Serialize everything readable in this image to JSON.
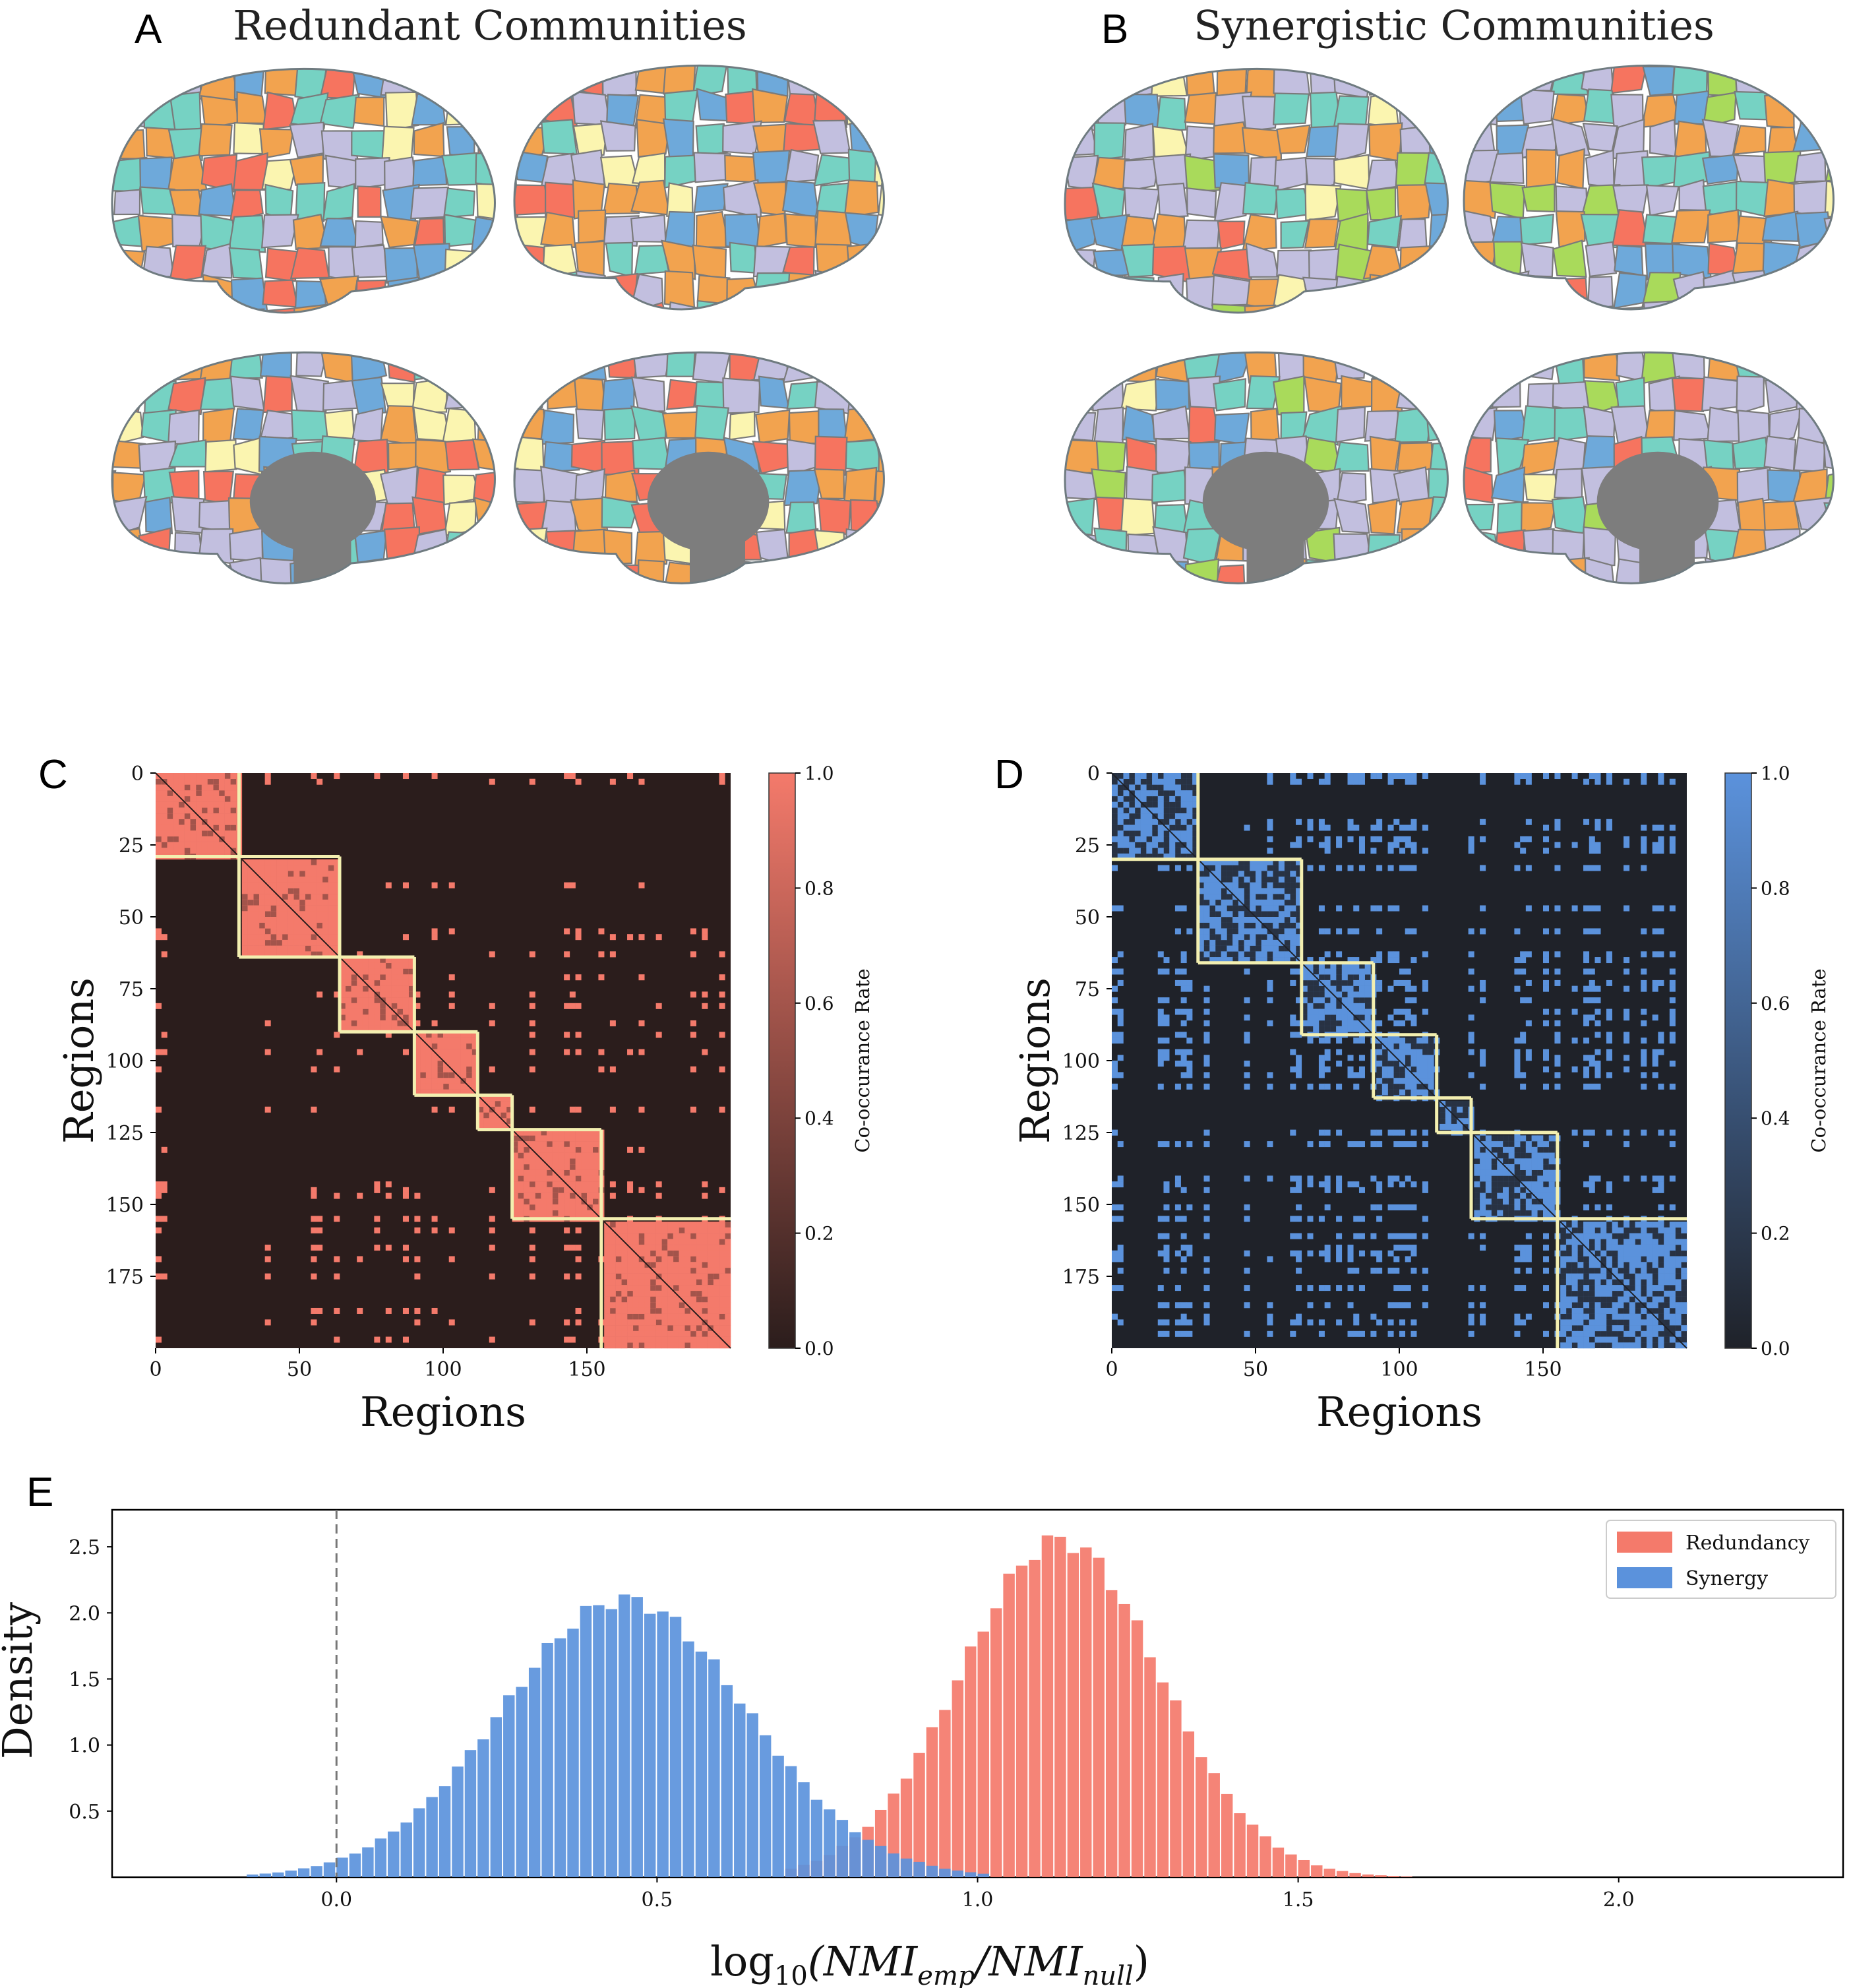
{
  "colors": {
    "redundancy": "#f47a6b",
    "synergy": "#5b92dc",
    "block_outline": "#f3efb0",
    "heatmap_bg_red": "#2b1d1c",
    "heatmap_bg_blue": "#1f2229",
    "medial_wall": "#7d7d7d",
    "community_palette": [
      "#c2bfdf",
      "#f2a34f",
      "#76d2c3",
      "#f6745f",
      "#6ea9da",
      "#fbf5b0",
      "#a9da5b"
    ]
  },
  "panels": {
    "A": {
      "letter": "A",
      "title": "Redundant Communities"
    },
    "B": {
      "letter": "B",
      "title": "Synergistic Communities"
    },
    "C": {
      "letter": "C"
    },
    "D": {
      "letter": "D"
    },
    "E": {
      "letter": "E"
    }
  },
  "chart_data": [
    {
      "id": "C",
      "type": "heatmap",
      "description": "Redundancy co-occurrence matrix (200 regions)",
      "n_regions": 200,
      "xlabel": "Regions",
      "ylabel": "Regions",
      "xticks": [
        0,
        50,
        100,
        150
      ],
      "yticks": [
        0,
        25,
        50,
        75,
        100,
        125,
        150,
        175
      ],
      "block_boundaries": [
        0,
        29,
        64,
        90,
        112,
        124,
        155,
        200
      ],
      "colorbar": {
        "label": "Co-occurance Rate",
        "ticks": [
          "0.0",
          "0.2",
          "0.4",
          "0.6",
          "0.8",
          "1.0"
        ],
        "range": [
          0,
          1
        ]
      }
    },
    {
      "id": "D",
      "type": "heatmap",
      "description": "Synergy co-occurrence matrix (200 regions)",
      "n_regions": 200,
      "xlabel": "Regions",
      "ylabel": "Regions",
      "xticks": [
        0,
        50,
        100,
        150
      ],
      "yticks": [
        0,
        25,
        50,
        75,
        100,
        125,
        150,
        175
      ],
      "block_boundaries": [
        0,
        30,
        66,
        91,
        113,
        125,
        155,
        200
      ],
      "colorbar": {
        "label": "Co-occurance Rate",
        "ticks": [
          "0.0",
          "0.2",
          "0.4",
          "0.6",
          "0.8",
          "1.0"
        ],
        "range": [
          0,
          1
        ]
      }
    },
    {
      "id": "E",
      "type": "bar",
      "description": "Histograms of log10 NMI ratio",
      "xlabel": "log10(NMI_emp/NMI_null)",
      "xlabel_prefix": "log",
      "xlabel_sub": "10",
      "xlabel_rest": "(NMI",
      "xlabel_sub2": "emp",
      "xlabel_mid": "/NMI",
      "xlabel_sub3": "null",
      "xlabel_end": ")",
      "ylabel": "Density",
      "xlim": [
        -0.35,
        2.35
      ],
      "ylim": [
        0,
        2.78
      ],
      "xticks": [
        "0.0",
        "0.5",
        "1.0",
        "1.5",
        "2.0"
      ],
      "yticks": [
        "0.5",
        "1.0",
        "1.5",
        "2.0",
        "2.5"
      ],
      "vline_x": 0.0,
      "bin_width": 0.02,
      "series": [
        {
          "name": "Redundancy",
          "mean": 1.13,
          "sd": 0.155,
          "peak": 2.55,
          "start": 0.7,
          "end": 1.72
        },
        {
          "name": "Synergy",
          "mean": 0.45,
          "sd": 0.19,
          "peak": 2.1,
          "start": -0.14,
          "end": 1.02
        }
      ],
      "legend": [
        "Redundancy",
        "Synergy"
      ],
      "legend_position": "top-right"
    }
  ]
}
